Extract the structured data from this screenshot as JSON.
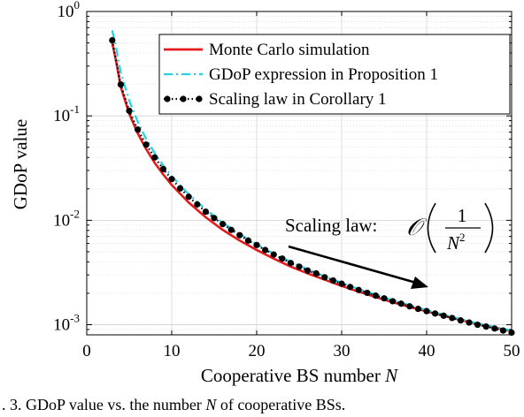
{
  "chart_data": {
    "type": "line",
    "title": "",
    "xlabel_text": "Cooperative BS number ",
    "xlabel_var": "N",
    "ylabel": "GDoP value",
    "xlim": [
      0,
      50
    ],
    "ylim": [
      0.0008,
      1
    ],
    "yscale": "log",
    "grid": true,
    "legend_placement": "top-right",
    "x_ticks": [
      0,
      10,
      20,
      30,
      40,
      50
    ],
    "x_tick_labels": [
      "0",
      "10",
      "20",
      "30",
      "40",
      "50"
    ],
    "y_ticks": [
      0.001,
      0.01,
      0.1,
      1
    ],
    "y_tick_base": "10",
    "y_tick_exponents": [
      "-3",
      "-2",
      "-1",
      "0"
    ],
    "series": [
      {
        "name": "Monte Carlo simulation",
        "color": "#e41a1c",
        "style": "solid",
        "x": [
          3,
          3.5,
          4,
          5,
          6,
          7,
          8,
          9,
          10,
          12,
          14,
          16,
          18,
          20,
          22,
          24,
          26,
          28,
          30,
          32,
          34,
          36,
          38,
          40,
          42,
          44,
          46,
          48,
          50
        ],
        "y": [
          0.5,
          0.32,
          0.19,
          0.105,
          0.068,
          0.048,
          0.0355,
          0.0275,
          0.0218,
          0.0148,
          0.0107,
          0.0081,
          0.0064,
          0.0052,
          0.0043,
          0.0036,
          0.0031,
          0.0027,
          0.00235,
          0.00207,
          0.00184,
          0.00164,
          0.00148,
          0.00134,
          0.00122,
          0.00111,
          0.00102,
          0.00094,
          0.00087
        ]
      },
      {
        "name": "GDoP expression in Proposition 1",
        "color": "#22d3e6",
        "style": "dashdot",
        "x": [
          3,
          3.5,
          4,
          5,
          6,
          7,
          8,
          9,
          10,
          12,
          14,
          16,
          18,
          20,
          22,
          24,
          26,
          28,
          30,
          32,
          34,
          36,
          38,
          40,
          42,
          44,
          46,
          48,
          50
        ],
        "y": [
          0.66,
          0.43,
          0.26,
          0.14,
          0.088,
          0.06,
          0.044,
          0.0335,
          0.0265,
          0.0178,
          0.0127,
          0.0095,
          0.0074,
          0.0059,
          0.0048,
          0.004,
          0.0034,
          0.0029,
          0.00252,
          0.0022,
          0.00194,
          0.00172,
          0.00154,
          0.00138,
          0.00125,
          0.00113,
          0.00103,
          0.00095,
          0.00088
        ]
      },
      {
        "name": "Scaling law in Corollary 1",
        "color": "#000000",
        "style": "dotted-marker",
        "x": [
          3,
          4,
          5,
          6,
          7,
          8,
          9,
          10,
          11,
          12,
          13,
          14,
          15,
          16,
          17,
          18,
          19,
          20,
          21,
          22,
          23,
          24,
          25,
          26,
          27,
          28,
          29,
          30,
          31,
          32,
          33,
          34,
          35,
          36,
          37,
          38,
          39,
          40,
          41,
          42,
          43,
          44,
          45,
          46,
          47,
          48,
          49,
          50
        ],
        "y": [
          0.53,
          0.2,
          0.112,
          0.074,
          0.053,
          0.04,
          0.031,
          0.0248,
          0.0202,
          0.0168,
          0.0142,
          0.0121,
          0.0105,
          0.0092,
          0.0081,
          0.0072,
          0.0064,
          0.0058,
          0.0052,
          0.0047,
          0.0043,
          0.0039,
          0.0036,
          0.0033,
          0.0031,
          0.00285,
          0.00265,
          0.00247,
          0.0023,
          0.00215,
          0.00202,
          0.0019,
          0.00179,
          0.00168,
          0.00159,
          0.0015,
          0.00142,
          0.00135,
          0.00128,
          0.00122,
          0.00116,
          0.0011,
          0.00105,
          0.001,
          0.00096,
          0.00092,
          0.00088,
          0.00084
        ]
      }
    ],
    "annotation": {
      "text": "Scaling law:",
      "symbol": "𝒪",
      "numerator": "1",
      "denominator_base": "N",
      "denominator_exp": "2"
    }
  },
  "caption": {
    "prefix": ". 3.   GDoP value vs. the number ",
    "var": "N",
    "suffix": " of cooperative BSs."
  }
}
